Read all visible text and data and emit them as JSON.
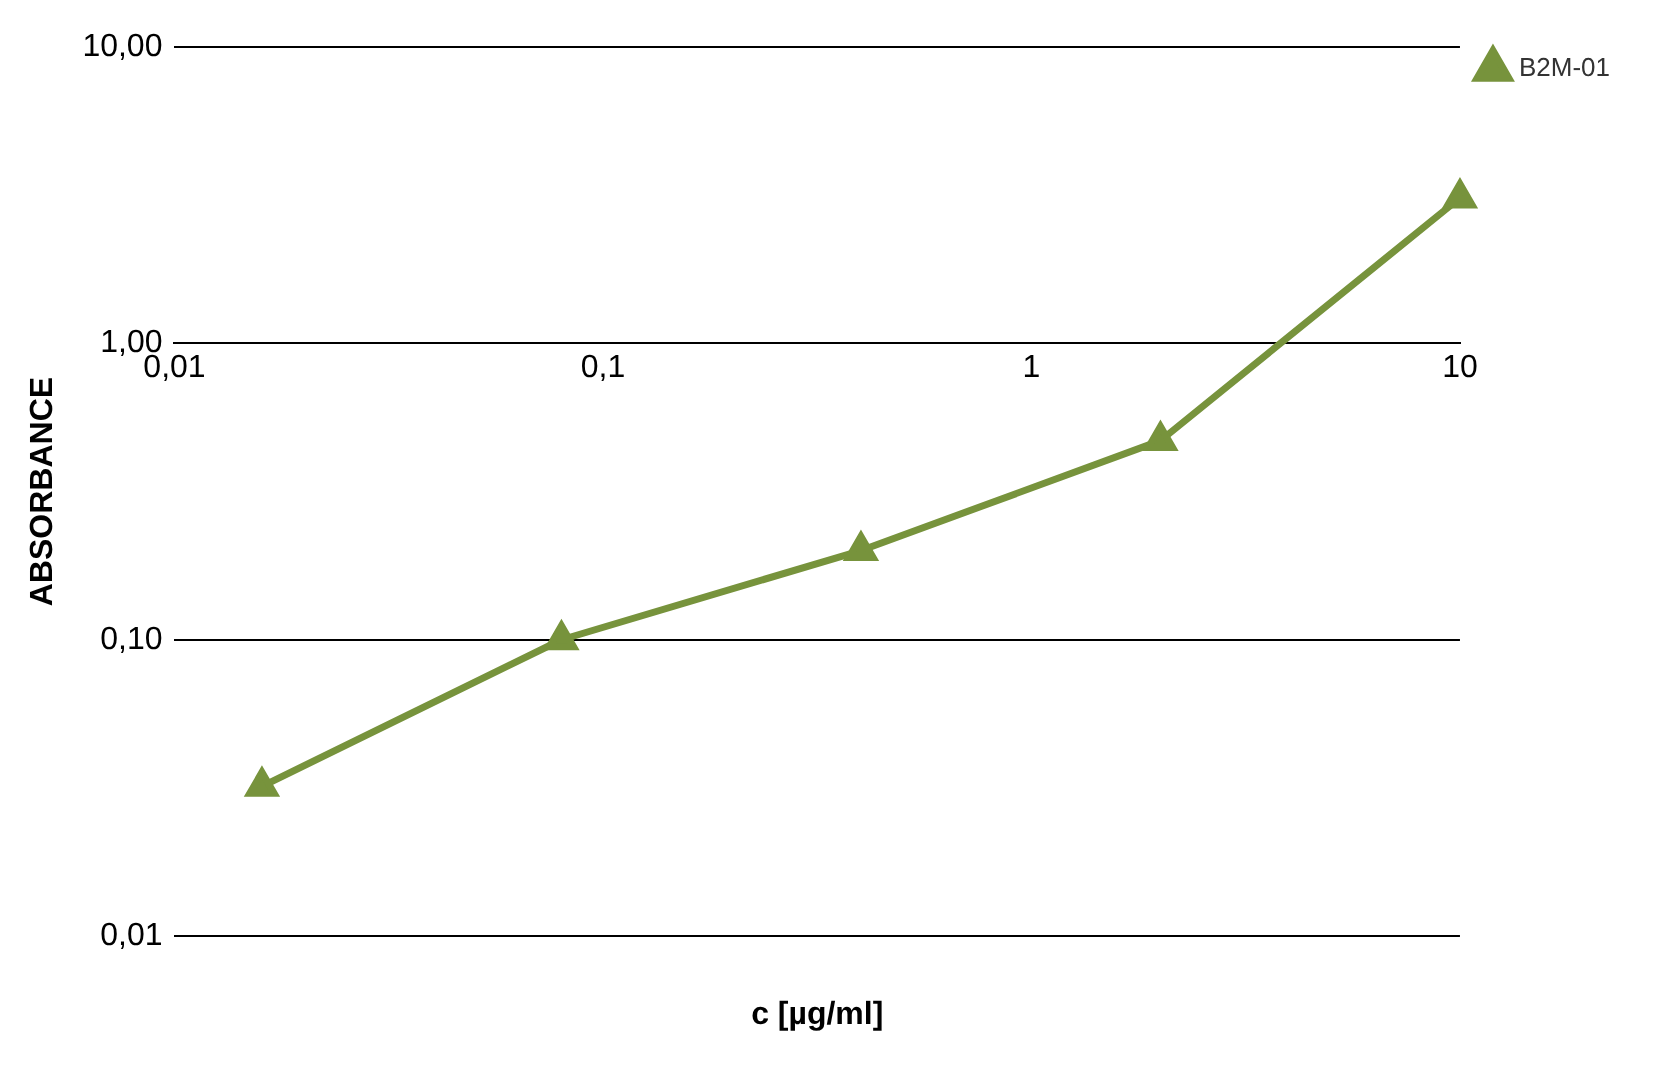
{
  "chart_data": {
    "type": "line",
    "xlabel": "c [µg/ml]",
    "ylabel": "ABSORBANCE",
    "x": [
      0.016,
      0.08,
      0.4,
      2,
      10
    ],
    "series": [
      {
        "name": "B2M-01",
        "color": "#77933c",
        "values": [
          0.032,
          0.1,
          0.2,
          0.47,
          3.1
        ]
      }
    ],
    "log": "xy",
    "xlim": [
      0.01,
      10
    ],
    "ylim": [
      0.01,
      10
    ],
    "xticks": [
      {
        "value": 0.01,
        "label": "0,01"
      },
      {
        "value": 0.1,
        "label": "0,1"
      },
      1,
      10
    ],
    "yticks": [
      {
        "value": 0.01,
        "label": "0,01"
      },
      {
        "value": 0.1,
        "label": "0,10"
      },
      {
        "value": 1,
        "label": "1,00"
      },
      {
        "value": 10,
        "label": "10,00"
      }
    ],
    "grid": "y",
    "legend": "top right",
    "marker": "triangle",
    "line_style": "solid"
  }
}
